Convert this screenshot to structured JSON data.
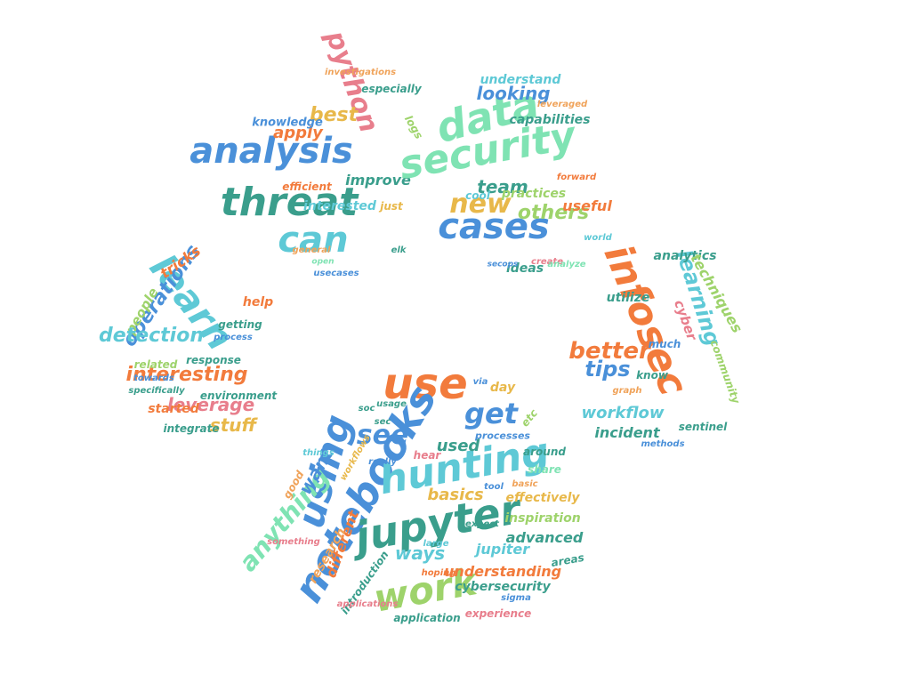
{
  "palette": [
    "#4a90d9",
    "#3a9e8c",
    "#e87e8c",
    "#f0a35a",
    "#5ec9d6",
    "#9ed36b",
    "#7fe3b3",
    "#e8b84a",
    "#f27b3c",
    "#6fa9e0"
  ],
  "words": [
    {
      "text": "analysis",
      "c": 0
    },
    {
      "text": "threat",
      "c": 1
    },
    {
      "text": "can",
      "c": 4
    },
    {
      "text": "python",
      "c": 2
    },
    {
      "text": "best",
      "c": 7
    },
    {
      "text": "apply",
      "c": 8
    },
    {
      "text": "improve",
      "c": 1
    },
    {
      "text": "interested",
      "c": 4
    },
    {
      "text": "knowledge",
      "c": 0
    },
    {
      "text": "especially",
      "c": 1
    },
    {
      "text": "investigations",
      "c": 3
    },
    {
      "text": "logs",
      "c": 5
    },
    {
      "text": "efficient",
      "c": 8
    },
    {
      "text": "just",
      "c": 7
    },
    {
      "text": "general",
      "c": 3
    },
    {
      "text": "elk",
      "c": 1
    },
    {
      "text": "open",
      "c": 6
    },
    {
      "text": "usecases",
      "c": 0
    },
    {
      "text": "data",
      "c": 6
    },
    {
      "text": "security",
      "c": 6
    },
    {
      "text": "cases",
      "c": 0
    },
    {
      "text": "new",
      "c": 7
    },
    {
      "text": "team",
      "c": 1
    },
    {
      "text": "others",
      "c": 5
    },
    {
      "text": "useful",
      "c": 8
    },
    {
      "text": "cool",
      "c": 4
    },
    {
      "text": "practices",
      "c": 5
    },
    {
      "text": "ideas",
      "c": 1
    },
    {
      "text": "looking",
      "c": 0
    },
    {
      "text": "capabilities",
      "c": 1
    },
    {
      "text": "understand",
      "c": 4
    },
    {
      "text": "leveraged",
      "c": 3
    },
    {
      "text": "forward",
      "c": 8
    },
    {
      "text": "secops",
      "c": 0
    },
    {
      "text": "create",
      "c": 2
    },
    {
      "text": "analyze",
      "c": 6
    },
    {
      "text": "world",
      "c": 4
    },
    {
      "text": "learn",
      "c": 4
    },
    {
      "text": "operations",
      "c": 0
    },
    {
      "text": "tricks",
      "c": 8
    },
    {
      "text": "people",
      "c": 5
    },
    {
      "text": "detection",
      "c": 4
    },
    {
      "text": "interesting",
      "c": 8
    },
    {
      "text": "leverage",
      "c": 2
    },
    {
      "text": "stuff",
      "c": 7
    },
    {
      "text": "started",
      "c": 8
    },
    {
      "text": "integrate",
      "c": 1
    },
    {
      "text": "environment",
      "c": 1
    },
    {
      "text": "response",
      "c": 1
    },
    {
      "text": "related",
      "c": 5
    },
    {
      "text": "towards",
      "c": 0
    },
    {
      "text": "specifically",
      "c": 1
    },
    {
      "text": "help",
      "c": 8
    },
    {
      "text": "getting",
      "c": 1
    },
    {
      "text": "process",
      "c": 0
    },
    {
      "text": "infosec",
      "c": 8
    },
    {
      "text": "learning",
      "c": 4
    },
    {
      "text": "cyber",
      "c": 2
    },
    {
      "text": "better",
      "c": 8
    },
    {
      "text": "tips",
      "c": 0
    },
    {
      "text": "workflow",
      "c": 4
    },
    {
      "text": "incident",
      "c": 1
    },
    {
      "text": "analytics",
      "c": 1
    },
    {
      "text": "techniques",
      "c": 5
    },
    {
      "text": "utilize",
      "c": 1
    },
    {
      "text": "much",
      "c": 0
    },
    {
      "text": "know",
      "c": 1
    },
    {
      "text": "community",
      "c": 5
    },
    {
      "text": "sentinel",
      "c": 1
    },
    {
      "text": "graph",
      "c": 3
    },
    {
      "text": "methods",
      "c": 0
    },
    {
      "text": "use",
      "c": 8
    },
    {
      "text": "using",
      "c": 0
    },
    {
      "text": "notebooks",
      "c": 0
    },
    {
      "text": "hunting",
      "c": 4
    },
    {
      "text": "jupyter",
      "c": 1
    },
    {
      "text": "work",
      "c": 5
    },
    {
      "text": "get",
      "c": 0
    },
    {
      "text": "see",
      "c": 0
    },
    {
      "text": "anything",
      "c": 6
    },
    {
      "text": "want",
      "c": 0
    },
    {
      "text": "day",
      "c": 7
    },
    {
      "text": "used",
      "c": 1
    },
    {
      "text": "basics",
      "c": 7
    },
    {
      "text": "ways",
      "c": 4
    },
    {
      "text": "jupiter",
      "c": 4
    },
    {
      "text": "understanding",
      "c": 8
    },
    {
      "text": "different",
      "c": 8
    },
    {
      "text": "research",
      "c": 3
    },
    {
      "text": "advanced",
      "c": 1
    },
    {
      "text": "effectively",
      "c": 7
    },
    {
      "text": "inspiration",
      "c": 5
    },
    {
      "text": "cybersecurity",
      "c": 1
    },
    {
      "text": "experience",
      "c": 2
    },
    {
      "text": "around",
      "c": 1
    },
    {
      "text": "processes",
      "c": 0
    },
    {
      "text": "share",
      "c": 6
    },
    {
      "text": "hear",
      "c": 2
    },
    {
      "text": "usage",
      "c": 1
    },
    {
      "text": "sec",
      "c": 1
    },
    {
      "text": "via",
      "c": 0
    },
    {
      "text": "etc",
      "c": 5
    },
    {
      "text": "basic",
      "c": 3
    },
    {
      "text": "tool",
      "c": 0
    },
    {
      "text": "expect",
      "c": 1
    },
    {
      "text": "areas",
      "c": 1
    },
    {
      "text": "hoping",
      "c": 8
    },
    {
      "text": "large",
      "c": 4
    },
    {
      "text": "good",
      "c": 3
    },
    {
      "text": "something",
      "c": 2
    },
    {
      "text": "introduction",
      "c": 1
    },
    {
      "text": "applications",
      "c": 2
    },
    {
      "text": "application",
      "c": 1
    },
    {
      "text": "sigma",
      "c": 0
    },
    {
      "text": "workflows",
      "c": 7
    },
    {
      "text": "things",
      "c": 4
    },
    {
      "text": "really",
      "c": 0
    },
    {
      "text": "soc",
      "c": 1
    },
    {
      "text": "blue",
      "c": 0
    }
  ]
}
